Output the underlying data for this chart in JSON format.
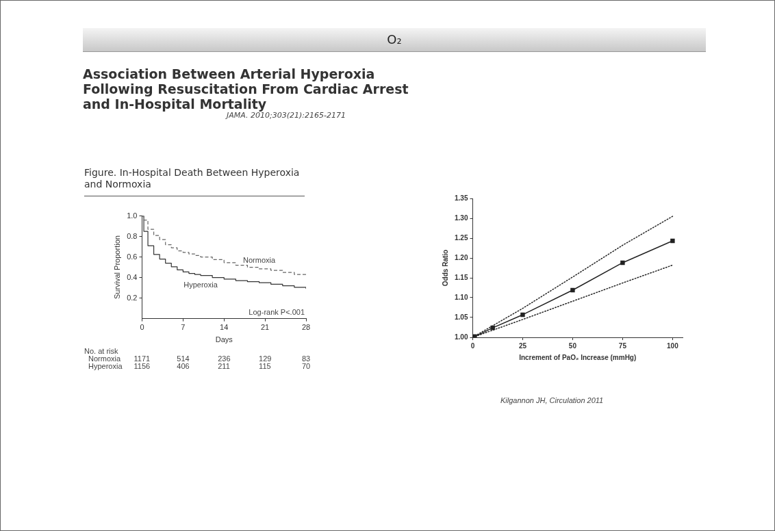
{
  "chart_data": [
    {
      "type": "step",
      "title": "Figure. In-Hospital Death Between Hyperoxia and Normoxia",
      "xlabel": "Days",
      "ylabel": "Survival Proportion",
      "xlim": [
        0,
        28
      ],
      "xticks": [
        0,
        7,
        14,
        21,
        28
      ],
      "ylim": [
        0,
        1
      ],
      "yticks": [
        0.2,
        0.4,
        0.6,
        0.8,
        {
          "value": 1,
          "label": "1.0"
        }
      ],
      "series": [
        {
          "name": "Normoxia",
          "color": "#666666",
          "line_style": "dashed",
          "x": [
            0,
            0.3,
            1,
            2,
            3,
            4,
            5,
            6,
            7,
            8,
            9,
            10,
            12,
            14,
            16,
            18,
            20,
            22,
            24,
            26,
            28
          ],
          "values": [
            1,
            0.96,
            0.87,
            0.81,
            0.77,
            0.72,
            0.69,
            0.66,
            0.645,
            0.63,
            0.615,
            0.6,
            0.575,
            0.545,
            0.52,
            0.5,
            0.485,
            0.47,
            0.45,
            0.43,
            0.41
          ]
        },
        {
          "name": "Hyperoxia",
          "color": "#333333",
          "line_style": "solid",
          "x": [
            0,
            0.3,
            1,
            2,
            3,
            4,
            5,
            6,
            7,
            8,
            9,
            10,
            12,
            14,
            16,
            18,
            20,
            22,
            24,
            26,
            28
          ],
          "values": [
            1,
            0.85,
            0.71,
            0.625,
            0.58,
            0.54,
            0.505,
            0.475,
            0.455,
            0.44,
            0.43,
            0.42,
            0.4,
            0.385,
            0.37,
            0.36,
            0.35,
            0.335,
            0.32,
            0.305,
            0.29
          ]
        }
      ],
      "annotations": [
        "O₂",
        "Association Between Arterial Hyperoxia Following Resuscitation From Cardiac Arrest and In-Hospital Mortality",
        "JAMA. 2010;303(21):2165-2171",
        "Log-rank P<.001",
        "No. at risk",
        "Normoxia",
        "1171",
        "514",
        "236",
        "129",
        "83",
        "Hyperoxia",
        "1156",
        "406",
        "211",
        "115",
        "70"
      ]
    },
    {
      "type": "line",
      "xlabel": "Increment of PaO₂ Increase (mmHg)",
      "ylabel": "Odds Ratio",
      "xlim": [
        0,
        105
      ],
      "xticks": [
        0,
        25,
        50,
        75,
        100
      ],
      "ylim": [
        1,
        1.35
      ],
      "yticks": [
        {
          "value": 1,
          "label": "1.00"
        },
        {
          "value": 1.05,
          "label": "1.05"
        },
        {
          "value": 1.1,
          "label": "1.10"
        },
        {
          "value": 1.15,
          "label": "1.15"
        },
        {
          "value": 1.2,
          "label": "1.20"
        },
        {
          "value": 1.25,
          "label": "1.25"
        },
        {
          "value": 1.3,
          "label": "1.30"
        },
        {
          "value": 1.35,
          "label": "1.35"
        }
      ],
      "series": [
        {
          "color": "#222222",
          "marker": "square",
          "line_style": "solid",
          "x": [
            1,
            10,
            25,
            50,
            75,
            100
          ],
          "values": [
            1.002,
            1.024,
            1.057,
            1.119,
            1.188,
            1.243
          ]
        },
        {
          "color": "#222222",
          "marker": "none",
          "line_style": "dotted",
          "x": [
            0,
            25,
            50,
            75,
            100
          ],
          "values": [
            1,
            1.073,
            1.152,
            1.232,
            1.305
          ]
        },
        {
          "color": "#222222",
          "marker": "none",
          "line_style": "dotted",
          "x": [
            0,
            25,
            50,
            75,
            100
          ],
          "values": [
            1,
            1.045,
            1.091,
            1.137,
            1.182
          ]
        }
      ],
      "annotations": [
        "Kilgannon JH, Circulation 2011"
      ]
    }
  ]
}
